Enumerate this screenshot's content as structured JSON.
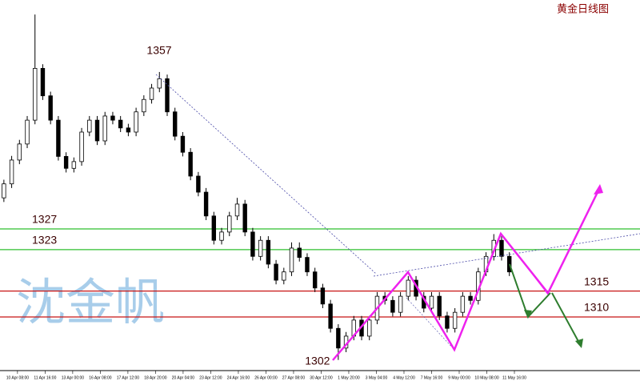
{
  "chart_data": {
    "type": "candlestick",
    "title": "黄金日线图",
    "watermark": "沈金帆",
    "x": [
      0,
      1,
      2,
      3,
      4,
      5,
      6,
      7,
      8,
      9,
      10,
      11,
      12,
      13,
      14,
      15,
      16,
      17,
      18,
      19,
      20,
      21,
      22,
      23,
      24,
      25,
      26,
      27,
      28,
      29,
      30,
      31,
      32,
      33,
      34,
      35,
      36,
      37,
      38,
      39,
      40,
      41,
      42,
      43,
      44,
      45,
      46,
      47,
      48,
      49,
      50,
      51,
      52,
      53,
      54,
      55,
      56,
      57,
      58,
      59,
      60,
      61,
      62,
      63,
      64,
      65
    ],
    "open": [
      1333,
      1335.7,
      1340.3,
      1343.4,
      1348,
      1358,
      1352.7,
      1348,
      1341,
      1338.7,
      1340,
      1345.7,
      1348,
      1344,
      1348.8,
      1348,
      1346.5,
      1345.7,
      1349.6,
      1352,
      1354.2,
      1356,
      1349.6,
      1344.9,
      1341.8,
      1337.2,
      1334.1,
      1329.5,
      1324.8,
      1326.4,
      1329.5,
      1331.8,
      1326.4,
      1321.7,
      1324.8,
      1320.2,
      1317.1,
      1318.7,
      1323.3,
      1321.5,
      1318.7,
      1315.6,
      1312.5,
      1307.8,
      1304,
      1306.3,
      1309.4,
      1306.3,
      1309.4,
      1314,
      1313.2,
      1310.9,
      1314,
      1317.1,
      1314,
      1311.7,
      1314,
      1310.2,
      1307.8,
      1310.9,
      1314,
      1313.2,
      1318.7,
      1321.7,
      1324.8,
      1321.7
    ],
    "high": [
      1336.5,
      1341.1,
      1344.2,
      1348.8,
      1368.4,
      1358.8,
      1353.5,
      1348.8,
      1341.8,
      1340.8,
      1346.5,
      1348.8,
      1348.8,
      1349.6,
      1349.6,
      1348.8,
      1347.3,
      1350.4,
      1352.8,
      1355,
      1357.3,
      1356.8,
      1350.4,
      1345.7,
      1342.6,
      1338,
      1334.9,
      1330.3,
      1327.2,
      1330.3,
      1333,
      1332.6,
      1327.2,
      1325.6,
      1325.6,
      1321,
      1319.5,
      1324.4,
      1324.4,
      1322.3,
      1319.5,
      1316.4,
      1313.3,
      1308.6,
      1307.1,
      1310.2,
      1310.2,
      1310.2,
      1314.8,
      1314.8,
      1314,
      1314.8,
      1317.9,
      1317.9,
      1314.8,
      1314.8,
      1314.8,
      1311,
      1311.7,
      1314.8,
      1314.8,
      1319.5,
      1322.5,
      1326,
      1325.6,
      1322.5
    ],
    "low": [
      1332.2,
      1334.9,
      1339.5,
      1342.6,
      1347.2,
      1351.9,
      1347.2,
      1340.2,
      1337.9,
      1337.9,
      1339.2,
      1344.9,
      1343.2,
      1343.2,
      1347.2,
      1345.7,
      1344.9,
      1344.9,
      1348.8,
      1351.2,
      1353.4,
      1348.8,
      1344.1,
      1341,
      1336.4,
      1333.3,
      1328.7,
      1324,
      1324,
      1325.6,
      1328.7,
      1325.6,
      1320.9,
      1320.9,
      1319.4,
      1316.3,
      1316.3,
      1317.9,
      1320.7,
      1317.9,
      1314.8,
      1311.7,
      1307,
      1301.7,
      1303.2,
      1305.5,
      1305.5,
      1305.5,
      1308.6,
      1312.4,
      1310.1,
      1310.1,
      1313.2,
      1313.2,
      1310.9,
      1310.9,
      1309.4,
      1307,
      1307,
      1310.1,
      1312.4,
      1312.4,
      1317.9,
      1320.9,
      1320.9,
      1317.9
    ],
    "close": [
      1335.7,
      1340.3,
      1343.4,
      1348,
      1358,
      1352.7,
      1348,
      1341,
      1338.7,
      1340,
      1345.7,
      1348,
      1344,
      1348.8,
      1348,
      1346.5,
      1345.7,
      1349.6,
      1352,
      1354.2,
      1356,
      1349.6,
      1344.9,
      1341.8,
      1337.2,
      1334.1,
      1329.5,
      1324.8,
      1326.4,
      1329.5,
      1331.8,
      1326.4,
      1321.7,
      1324.8,
      1320.2,
      1317.1,
      1318.7,
      1323.3,
      1321.5,
      1318.7,
      1315.6,
      1312.5,
      1307.8,
      1304,
      1306.3,
      1309.4,
      1306.3,
      1309.4,
      1314,
      1313.2,
      1310.9,
      1314,
      1317.1,
      1314,
      1311.7,
      1314,
      1310.2,
      1307.8,
      1310.9,
      1314,
      1313.2,
      1318.7,
      1321.7,
      1324.8,
      1321.7,
      1318.7
    ],
    "xlim": [
      -0.5,
      81.8
    ],
    "ylim": [
      1299.8,
      1371.2
    ],
    "xticks": [
      {
        "value": 1.75,
        "label": "10 Apr 08:00"
      },
      {
        "value": 5.3,
        "label": "11 Apr 16:00"
      },
      {
        "value": 8.85,
        "label": "13 Apr 00:00"
      },
      {
        "value": 12.4,
        "label": "16 Apr 08:00"
      },
      {
        "value": 15.95,
        "label": "17 Apr 12:00"
      },
      {
        "value": 19.5,
        "label": "18 Apr 20:00"
      },
      {
        "value": 23.05,
        "label": "20 Apr 04:00"
      },
      {
        "value": 26.6,
        "label": "23 Apr 12:00"
      },
      {
        "value": 30.15,
        "label": "24 Apr 16:00"
      },
      {
        "value": 33.7,
        "label": "26 Apr 00:00"
      },
      {
        "value": 37.25,
        "label": "27 Apr 08:00"
      },
      {
        "value": 40.8,
        "label": "30 Apr 12:00"
      },
      {
        "value": 44.35,
        "label": "1 May 20:00"
      },
      {
        "value": 47.9,
        "label": "3 May 04:00"
      },
      {
        "value": 51.45,
        "label": "4 May 12:00"
      },
      {
        "value": 55,
        "label": "7 May 16:00"
      },
      {
        "value": 58.55,
        "label": "9 May 00:00"
      },
      {
        "value": 62.1,
        "label": "10 May 08:00"
      },
      {
        "value": 65.65,
        "label": "11 May 16:00"
      }
    ],
    "levels": [
      1327,
      1323,
      1315,
      1310
    ],
    "level_colors": [
      "#2fbf2f",
      "#2fbf2f",
      "#c81414",
      "#c81414"
    ],
    "extreme_labels": [
      1357,
      1302
    ]
  }
}
